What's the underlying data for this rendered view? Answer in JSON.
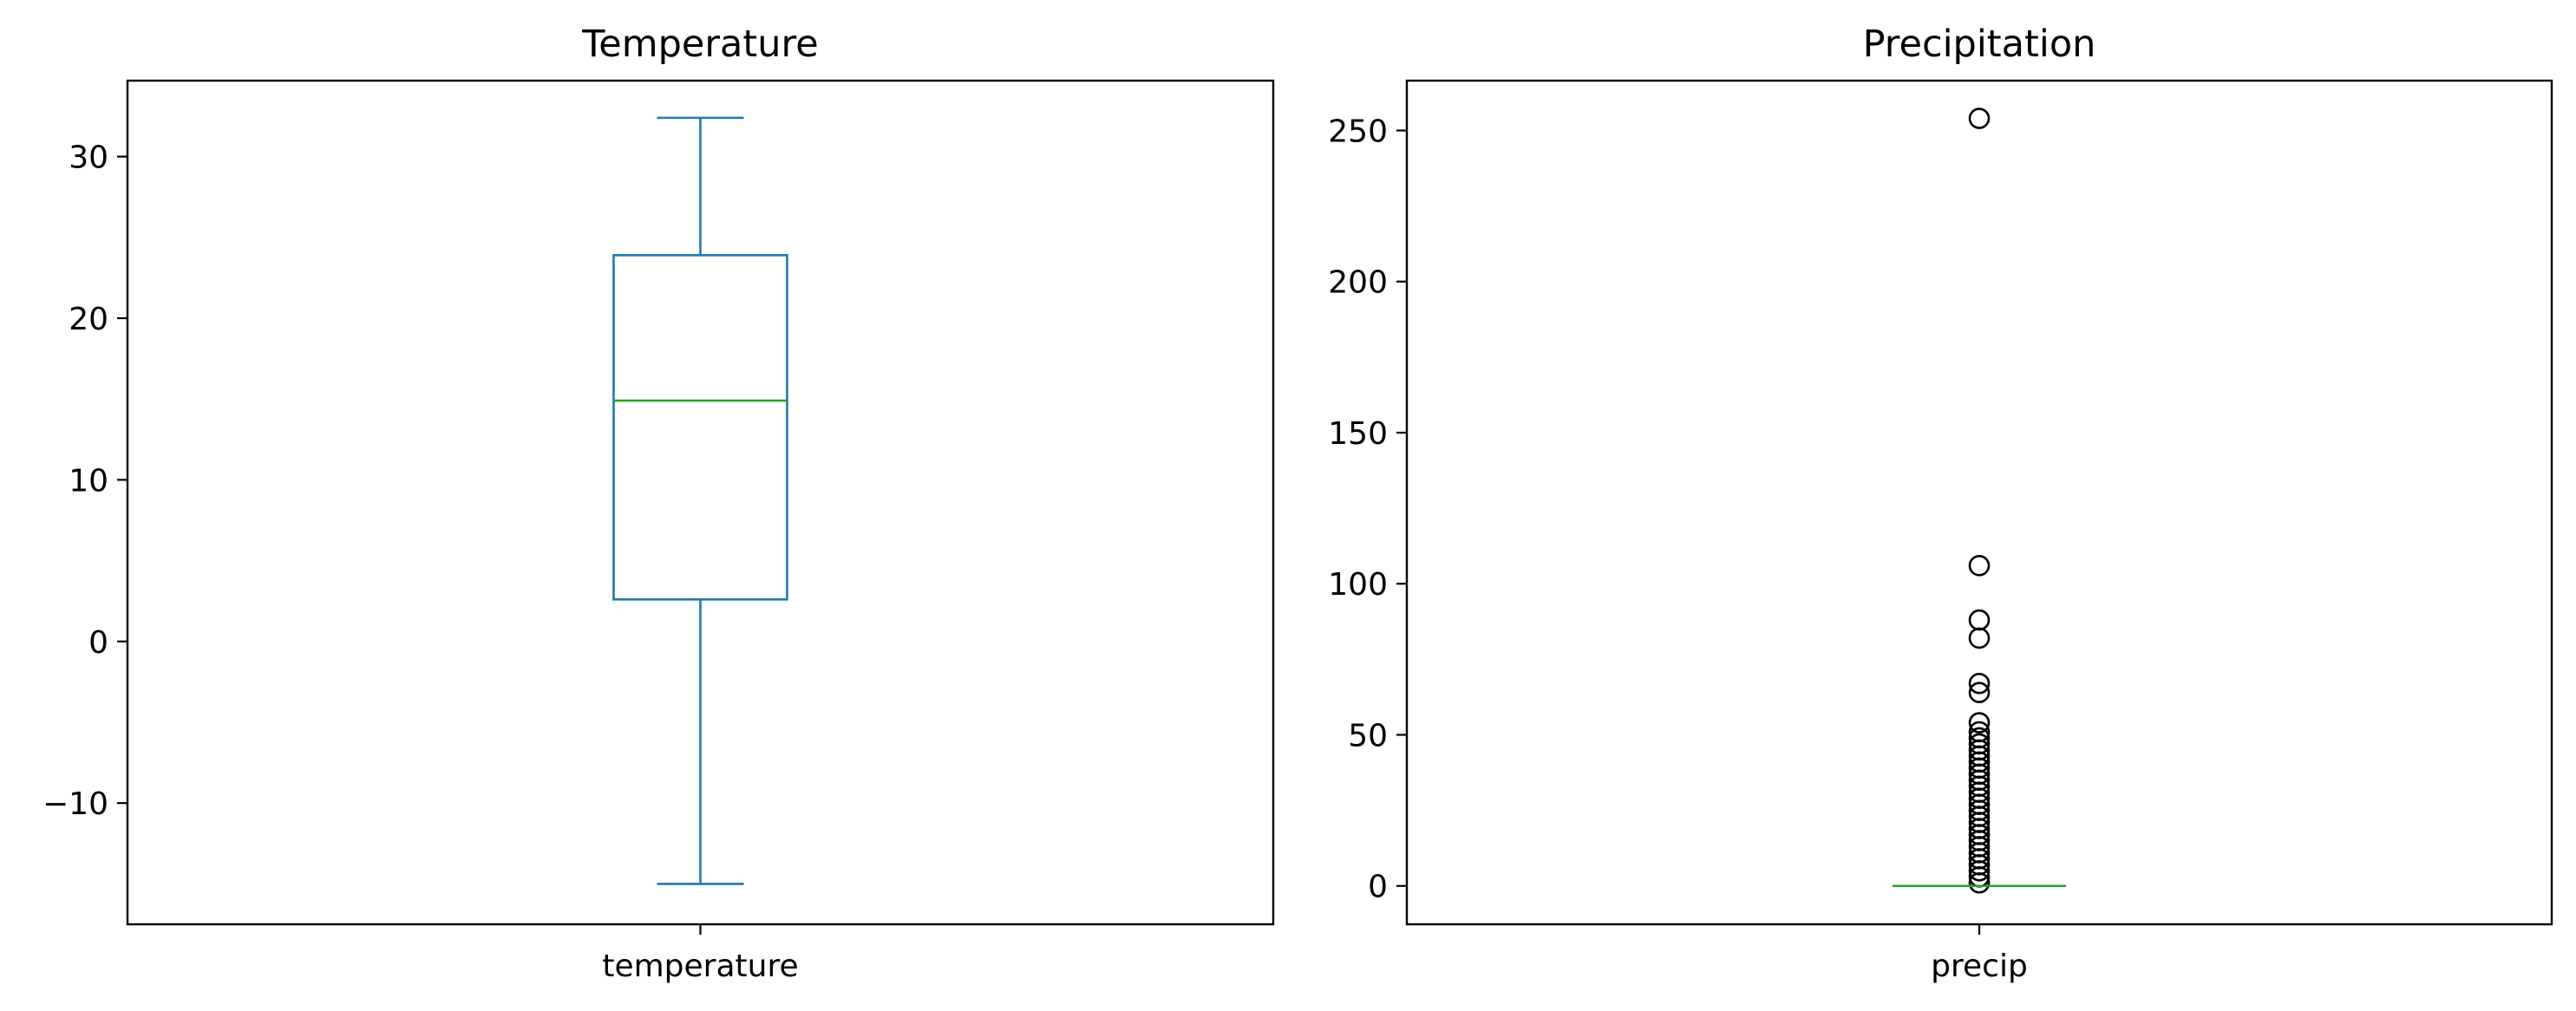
{
  "chart_data": [
    {
      "type": "box",
      "title": "Temperature",
      "category": "temperature",
      "ylim": [
        -17.5,
        34.7
      ],
      "yticks": [
        -10,
        0,
        10,
        20,
        30
      ],
      "ytick_labels": [
        "−10",
        "0",
        "10",
        "20",
        "30"
      ],
      "stats": {
        "whislo": -15.0,
        "q1": 2.6,
        "median": 14.9,
        "q3": 23.9,
        "whishi": 32.4
      },
      "fliers": [],
      "colors": {
        "box": "#1f77b4",
        "median": "#2ca02c"
      }
    },
    {
      "type": "box",
      "title": "Precipitation",
      "category": "precip",
      "ylim": [
        -12.7,
        266.5
      ],
      "yticks": [
        0,
        50,
        100,
        150,
        200,
        250
      ],
      "ytick_labels": [
        "0",
        "50",
        "100",
        "150",
        "200",
        "250"
      ],
      "stats": {
        "whislo": 0.0,
        "q1": 0.0,
        "median": 0.0,
        "q3": 0.0,
        "whishi": 0.0
      },
      "fliers": [
        254,
        106,
        88,
        82,
        67,
        64,
        54,
        51,
        49,
        47,
        45,
        43,
        41,
        39,
        37,
        35,
        33,
        31,
        29,
        27,
        25,
        23,
        21,
        19,
        17,
        15,
        13,
        11,
        9,
        7,
        5,
        3,
        1
      ],
      "colors": {
        "box": "#1f77b4",
        "median": "#2ca02c"
      }
    }
  ]
}
